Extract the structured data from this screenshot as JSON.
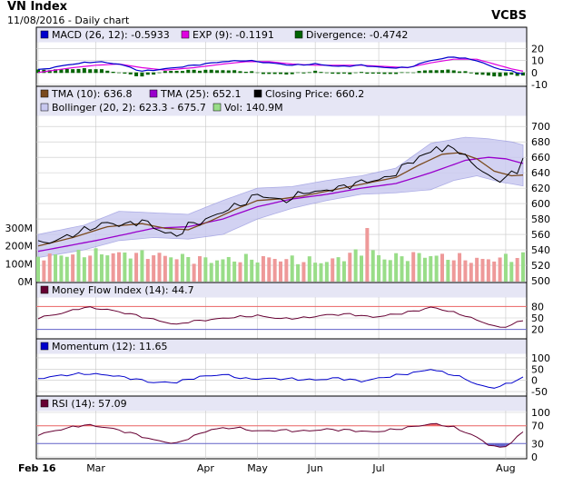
{
  "header": {
    "title": "VN Index",
    "subtitle": "11/08/2016 - Daily chart",
    "brand": "VCBS"
  },
  "colors": {
    "panel_bg": "#ffffff",
    "legend_bg": "#e6e6f5",
    "grid": "#c8c8c8",
    "band_fill": "#c8c8f0",
    "band_edge": "#9a9ae0",
    "macd": "#0000cc",
    "exp": "#e000e0",
    "divergence": "#006400",
    "tma10": "#7a4a1e",
    "tma25": "#9900cc",
    "close": "#000000",
    "vol_up": "#99dd88",
    "vol_down": "#ee9999",
    "mfi": "#660033",
    "momentum": "#0000cc",
    "rsi": "#660033",
    "over_fill": "#ee6666",
    "under_fill": "#6666cc",
    "ref_line": "#ee6666",
    "ref_line_low": "#6666cc"
  },
  "chart_data": [
    {
      "type": "bar",
      "id": "macd",
      "legend": [
        {
          "label": "MACD (26, 12): -0.5933",
          "swatch": "macd"
        },
        {
          "label": "EXP (9): -0.1191",
          "swatch": "exp"
        },
        {
          "label": "Divergence: -0.4742",
          "swatch": "divergence"
        }
      ],
      "ylim": [
        -10,
        24
      ],
      "yticks": [
        -10,
        0,
        10,
        20
      ],
      "anchors_macd": [
        [
          0,
          2
        ],
        [
          6,
          7
        ],
        [
          10,
          9
        ],
        [
          14,
          7
        ],
        [
          18,
          1
        ],
        [
          22,
          3
        ],
        [
          27,
          6
        ],
        [
          32,
          9
        ],
        [
          36,
          10
        ],
        [
          40,
          8
        ],
        [
          44,
          6
        ],
        [
          48,
          7
        ],
        [
          52,
          5
        ],
        [
          56,
          6
        ],
        [
          60,
          4
        ],
        [
          64,
          4
        ],
        [
          68,
          10
        ],
        [
          72,
          13
        ],
        [
          76,
          10
        ],
        [
          79,
          4
        ],
        [
          82,
          1
        ],
        [
          84,
          -1
        ]
      ],
      "anchors_exp": [
        [
          0,
          0
        ],
        [
          6,
          4
        ],
        [
          10,
          6
        ],
        [
          14,
          7
        ],
        [
          18,
          4
        ],
        [
          22,
          2
        ],
        [
          27,
          4
        ],
        [
          32,
          7
        ],
        [
          36,
          9
        ],
        [
          40,
          9
        ],
        [
          44,
          7
        ],
        [
          48,
          6
        ],
        [
          52,
          6
        ],
        [
          56,
          6
        ],
        [
          60,
          5
        ],
        [
          64,
          4
        ],
        [
          68,
          8
        ],
        [
          72,
          11
        ],
        [
          76,
          11
        ],
        [
          79,
          7
        ],
        [
          82,
          3
        ],
        [
          84,
          1
        ]
      ]
    },
    {
      "type": "line",
      "id": "price",
      "legend": [
        {
          "label": "TMA (10): 636.8",
          "swatch": "tma10"
        },
        {
          "label": "TMA (25): 652.1",
          "swatch": "tma25"
        },
        {
          "label": "Closing Price: 660.2",
          "swatch": "close"
        },
        {
          "label": "Bollinger (20, 2): 623.3 - 675.7",
          "swatch": "band_fill"
        },
        {
          "label": "Vol: 140.9M",
          "swatch": "vol_up"
        }
      ],
      "ylim": [
        500,
        712
      ],
      "yticks": [
        500,
        520,
        540,
        560,
        580,
        600,
        620,
        640,
        660,
        680,
        700
      ],
      "vol_ticks": [
        {
          "v": 0,
          "label": "0M"
        },
        {
          "v": 100,
          "label": "100M"
        },
        {
          "v": 200,
          "label": "200M"
        },
        {
          "v": 300,
          "label": "300M"
        }
      ],
      "anchors_close": [
        [
          0,
          548
        ],
        [
          3,
          552
        ],
        [
          6,
          560
        ],
        [
          9,
          568
        ],
        [
          12,
          575
        ],
        [
          15,
          572
        ],
        [
          18,
          578
        ],
        [
          20,
          570
        ],
        [
          22,
          562
        ],
        [
          24,
          558
        ],
        [
          26,
          572
        ],
        [
          28,
          576
        ],
        [
          30,
          582
        ],
        [
          32,
          590
        ],
        [
          34,
          596
        ],
        [
          36,
          602
        ],
        [
          38,
          612
        ],
        [
          40,
          608
        ],
        [
          42,
          604
        ],
        [
          44,
          606
        ],
        [
          46,
          616
        ],
        [
          48,
          614
        ],
        [
          50,
          618
        ],
        [
          52,
          620
        ],
        [
          54,
          624
        ],
        [
          56,
          628
        ],
        [
          58,
          630
        ],
        [
          60,
          632
        ],
        [
          62,
          640
        ],
        [
          64,
          652
        ],
        [
          66,
          660
        ],
        [
          68,
          666
        ],
        [
          69,
          676
        ],
        [
          70,
          668
        ],
        [
          72,
          674
        ],
        [
          74,
          660
        ],
        [
          76,
          648
        ],
        [
          78,
          636
        ],
        [
          79,
          630
        ],
        [
          81,
          634
        ],
        [
          83,
          642
        ],
        [
          84,
          660
        ]
      ],
      "anchors_tma10": [
        [
          0,
          545
        ],
        [
          6,
          556
        ],
        [
          12,
          570
        ],
        [
          18,
          574
        ],
        [
          22,
          568
        ],
        [
          26,
          566
        ],
        [
          30,
          578
        ],
        [
          34,
          592
        ],
        [
          38,
          604
        ],
        [
          42,
          606
        ],
        [
          46,
          610
        ],
        [
          50,
          616
        ],
        [
          54,
          622
        ],
        [
          58,
          628
        ],
        [
          62,
          634
        ],
        [
          66,
          650
        ],
        [
          70,
          664
        ],
        [
          73,
          666
        ],
        [
          76,
          658
        ],
        [
          79,
          642
        ],
        [
          82,
          636
        ],
        [
          84,
          637
        ]
      ],
      "anchors_tma25": [
        [
          0,
          538
        ],
        [
          10,
          552
        ],
        [
          20,
          568
        ],
        [
          26,
          570
        ],
        [
          32,
          580
        ],
        [
          38,
          596
        ],
        [
          44,
          606
        ],
        [
          50,
          612
        ],
        [
          56,
          620
        ],
        [
          62,
          626
        ],
        [
          68,
          640
        ],
        [
          74,
          656
        ],
        [
          78,
          660
        ],
        [
          81,
          658
        ],
        [
          84,
          652
        ]
      ],
      "anchors_band_up": [
        [
          0,
          560
        ],
        [
          8,
          572
        ],
        [
          14,
          590
        ],
        [
          20,
          588
        ],
        [
          26,
          586
        ],
        [
          32,
          604
        ],
        [
          38,
          620
        ],
        [
          44,
          622
        ],
        [
          50,
          630
        ],
        [
          56,
          636
        ],
        [
          62,
          646
        ],
        [
          68,
          678
        ],
        [
          74,
          686
        ],
        [
          78,
          684
        ],
        [
          82,
          680
        ],
        [
          84,
          676
        ]
      ],
      "anchors_band_low": [
        [
          0,
          530
        ],
        [
          8,
          540
        ],
        [
          14,
          552
        ],
        [
          20,
          556
        ],
        [
          26,
          554
        ],
        [
          32,
          560
        ],
        [
          38,
          580
        ],
        [
          44,
          594
        ],
        [
          50,
          604
        ],
        [
          56,
          612
        ],
        [
          62,
          614
        ],
        [
          68,
          618
        ],
        [
          72,
          630
        ],
        [
          76,
          636
        ],
        [
          80,
          628
        ],
        [
          84,
          623
        ]
      ],
      "anchors_vol": [
        [
          0,
          140
        ],
        [
          10,
          160
        ],
        [
          20,
          150
        ],
        [
          30,
          120
        ],
        [
          40,
          130
        ],
        [
          50,
          110
        ],
        [
          57,
          180
        ],
        [
          60,
          130
        ],
        [
          66,
          150
        ],
        [
          70,
          140
        ],
        [
          76,
          120
        ],
        [
          80,
          130
        ],
        [
          84,
          140
        ]
      ]
    },
    {
      "type": "line",
      "id": "mfi",
      "legend": [
        {
          "label": "Money Flow Index (14): 44.7",
          "swatch": "mfi"
        }
      ],
      "ylim": [
        0,
        100
      ],
      "yticks": [
        20,
        50,
        80
      ],
      "upper": 80,
      "lower": 20,
      "anchors": [
        [
          0,
          50
        ],
        [
          4,
          62
        ],
        [
          8,
          78
        ],
        [
          12,
          72
        ],
        [
          16,
          60
        ],
        [
          20,
          46
        ],
        [
          24,
          32
        ],
        [
          26,
          40
        ],
        [
          30,
          46
        ],
        [
          34,
          52
        ],
        [
          38,
          56
        ],
        [
          42,
          48
        ],
        [
          46,
          50
        ],
        [
          50,
          58
        ],
        [
          54,
          60
        ],
        [
          58,
          52
        ],
        [
          62,
          60
        ],
        [
          66,
          70
        ],
        [
          68,
          78
        ],
        [
          70,
          72
        ],
        [
          74,
          56
        ],
        [
          76,
          44
        ],
        [
          78,
          34
        ],
        [
          80,
          24
        ],
        [
          82,
          32
        ],
        [
          84,
          44
        ]
      ]
    },
    {
      "type": "line",
      "id": "momentum",
      "legend": [
        {
          "label": "Momentum (12): 11.65",
          "swatch": "momentum"
        }
      ],
      "ylim": [
        -62,
        112
      ],
      "yticks": [
        -50,
        0,
        50,
        100
      ],
      "anchors": [
        [
          0,
          8
        ],
        [
          4,
          22
        ],
        [
          8,
          30
        ],
        [
          12,
          24
        ],
        [
          16,
          10
        ],
        [
          20,
          -10
        ],
        [
          24,
          -8
        ],
        [
          28,
          16
        ],
        [
          32,
          26
        ],
        [
          36,
          6
        ],
        [
          40,
          8
        ],
        [
          44,
          6
        ],
        [
          48,
          2
        ],
        [
          52,
          10
        ],
        [
          56,
          -4
        ],
        [
          60,
          14
        ],
        [
          64,
          30
        ],
        [
          66,
          38
        ],
        [
          68,
          50
        ],
        [
          70,
          36
        ],
        [
          72,
          24
        ],
        [
          74,
          6
        ],
        [
          76,
          -18
        ],
        [
          78,
          -32
        ],
        [
          80,
          -28
        ],
        [
          82,
          -8
        ],
        [
          84,
          12
        ]
      ]
    },
    {
      "type": "line",
      "id": "rsi",
      "legend": [
        {
          "label": "RSI (14): 57.09",
          "swatch": "rsi"
        }
      ],
      "ylim": [
        0,
        100
      ],
      "yticks": [
        0,
        30,
        70,
        100
      ],
      "upper": 70,
      "lower": 30,
      "anchors": [
        [
          0,
          50
        ],
        [
          4,
          62
        ],
        [
          8,
          72
        ],
        [
          12,
          66
        ],
        [
          16,
          54
        ],
        [
          20,
          38
        ],
        [
          24,
          30
        ],
        [
          26,
          42
        ],
        [
          30,
          62
        ],
        [
          34,
          66
        ],
        [
          38,
          58
        ],
        [
          42,
          60
        ],
        [
          46,
          58
        ],
        [
          50,
          62
        ],
        [
          54,
          60
        ],
        [
          58,
          56
        ],
        [
          62,
          62
        ],
        [
          66,
          70
        ],
        [
          68,
          74
        ],
        [
          70,
          72
        ],
        [
          72,
          66
        ],
        [
          74,
          56
        ],
        [
          76,
          44
        ],
        [
          78,
          28
        ],
        [
          80,
          20
        ],
        [
          82,
          32
        ],
        [
          84,
          57
        ]
      ]
    }
  ],
  "x_axis": {
    "n": 85,
    "labels": [
      {
        "i": 0,
        "label": "Feb 16"
      },
      {
        "i": 10,
        "label": "Mar"
      },
      {
        "i": 29,
        "label": "Apr"
      },
      {
        "i": 38,
        "label": "May"
      },
      {
        "i": 48,
        "label": "Jun"
      },
      {
        "i": 59,
        "label": "Jul"
      },
      {
        "i": 81,
        "label": "Aug"
      }
    ]
  }
}
